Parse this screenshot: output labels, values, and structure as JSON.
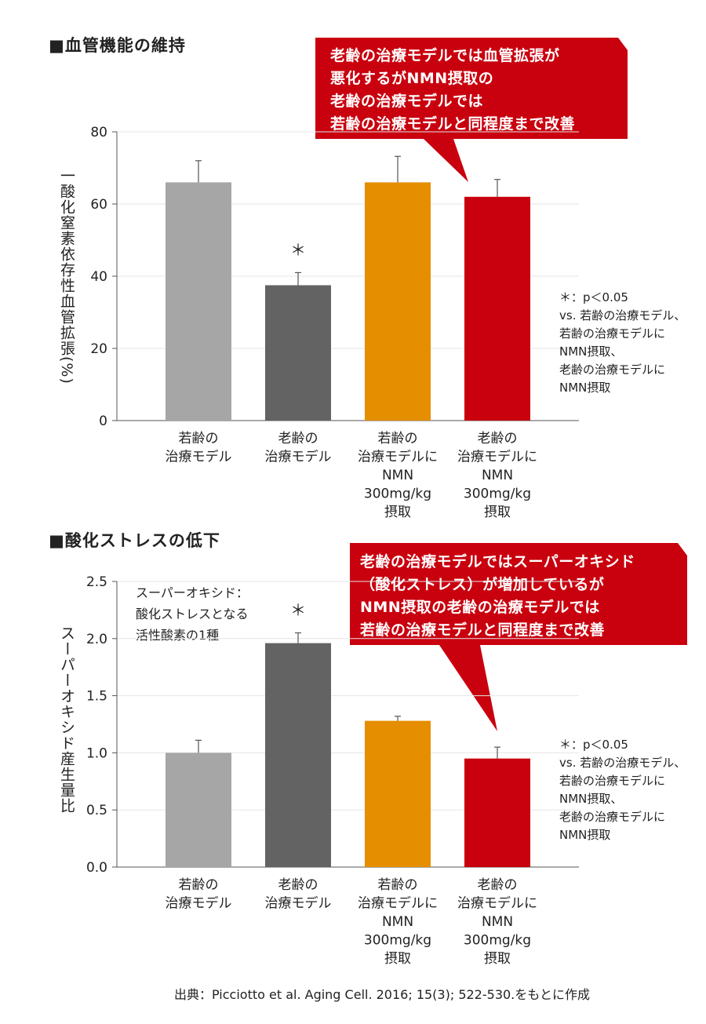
{
  "chart_data": [
    {
      "type": "bar",
      "title": "■血管機能の維持",
      "ylabel": "一酸化窒素依存性血管拡張(%)",
      "ylim": [
        0,
        80
      ],
      "yticks": [
        "0",
        "20",
        "40",
        "60",
        "80"
      ],
      "categories": [
        [
          "若齢の",
          "治療モデル"
        ],
        [
          "老齢の",
          "治療モデル"
        ],
        [
          "若齢の",
          "治療モデルに",
          "NMN",
          "300mg/kg",
          "摂取"
        ],
        [
          "老齢の",
          "治療モデルに",
          "NMN",
          "300mg/kg",
          "摂取"
        ]
      ],
      "values": [
        66,
        37.5,
        66,
        62
      ],
      "errors": [
        6,
        3.5,
        7.2,
        4.8
      ],
      "colors": [
        "#a6a6a6",
        "#646364",
        "#e58e00",
        "#c9000e"
      ],
      "significance": [
        "",
        "＊",
        "",
        ""
      ],
      "callout": [
        "老齢の治療モデルでは血管拡張が",
        "悪化するがNMN摂取の",
        "老齢の治療モデルでは",
        "若齢の治療モデルと同程度まで改善"
      ],
      "note": [
        "＊：p＜0.05",
        "vs. 若齢の治療モデル、",
        "若齢の治療モデルに",
        "NMN摂取、",
        "老齢の治療モデルに",
        "NMN摂取"
      ]
    },
    {
      "type": "bar",
      "title": "■酸化ストレスの低下",
      "ylabel": "スーパーオキシド産生量比",
      "ylim": [
        0,
        2.5
      ],
      "yticks": [
        "0.0",
        "0.5",
        "1.0",
        "1.5",
        "2.0",
        "2.5"
      ],
      "categories": [
        [
          "若齢の",
          "治療モデル"
        ],
        [
          "老齢の",
          "治療モデル"
        ],
        [
          "若齢の",
          "治療モデルに",
          "NMN",
          "300mg/kg",
          "摂取"
        ],
        [
          "老齢の",
          "治療モデルに",
          "NMN",
          "300mg/kg",
          "摂取"
        ]
      ],
      "values": [
        1.0,
        1.96,
        1.28,
        0.95
      ],
      "errors": [
        0.11,
        0.09,
        0.04,
        0.1
      ],
      "colors": [
        "#a6a6a6",
        "#646364",
        "#e58e00",
        "#c9000e"
      ],
      "significance": [
        "",
        "＊",
        "",
        ""
      ],
      "annotation": [
        "スーパーオキシド：",
        "酸化ストレスとなる",
        "活性酸素の1種"
      ],
      "callout": [
        "老齢の治療モデルではスーパーオキシド",
        "（酸化ストレス）が増加しているが",
        "NMN摂取の老齢の治療モデルでは",
        "若齢の治療モデルと同程度まで改善"
      ],
      "note": [
        "＊：p＜0.05",
        "vs. 若齢の治療モデル、",
        "若齢の治療モデルに",
        "NMN摂取、",
        "老齢の治療モデルに",
        "NMN摂取"
      ]
    }
  ],
  "source": "出典：Picciotto et al. Aging Cell. 2016; 15(3); 522-530.をもとに作成",
  "colors": {
    "callout": "#c9000e",
    "axis": "#555555",
    "grid": "#e6e6e6"
  }
}
